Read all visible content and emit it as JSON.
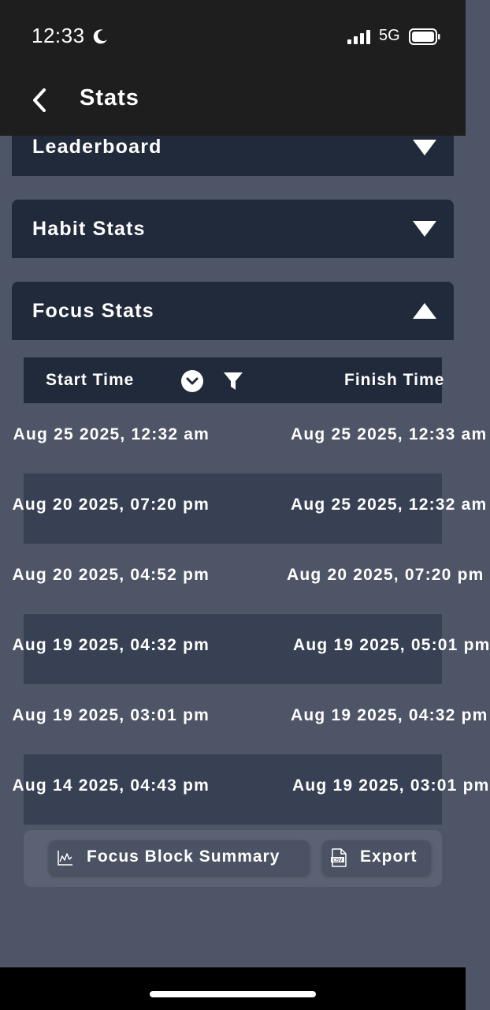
{
  "status": {
    "time": "12:33",
    "network": "5G"
  },
  "nav": {
    "title": "Stats"
  },
  "panels": {
    "leaderboard": "Leaderboard",
    "habit": "Habit Stats",
    "focus": "Focus Stats"
  },
  "table": {
    "headers": {
      "start": "Start Time",
      "finish": "Finish Time"
    },
    "rows": [
      {
        "start": "Aug 25 2025, 12:32 am",
        "finish": "Aug 25 2025, 12:33 am"
      },
      {
        "start": "Aug 20 2025, 07:20 pm",
        "finish": "Aug 25 2025, 12:32 am"
      },
      {
        "start": "Aug 20 2025, 04:52 pm",
        "finish": "Aug 20 2025, 07:20 pm"
      },
      {
        "start": "Aug 19 2025, 04:32 pm",
        "finish": "Aug 19 2025, 05:01 pm"
      },
      {
        "start": "Aug 19 2025, 03:01 pm",
        "finish": "Aug 19 2025, 04:32 pm"
      },
      {
        "start": "Aug 14 2025, 04:43 pm",
        "finish": "Aug 19 2025, 03:01 pm"
      }
    ]
  },
  "footer": {
    "summary_label": "Focus Block Summary",
    "export_label": "Export"
  },
  "icons": {
    "moon": "moon-icon",
    "signal": "signal-icon",
    "battery": "battery-icon",
    "back": "chevron-left-icon",
    "expand": "triangle-down-icon",
    "collapse": "triangle-up-icon",
    "sort": "chevron-circle-down-icon",
    "filter": "filter-icon",
    "summary": "line-chart-icon",
    "export": "csv-file-icon"
  },
  "colors": {
    "background": "#4d5566",
    "panel": "#212a3b",
    "row_alt": "#374153",
    "bar": "#1e1e1e"
  }
}
